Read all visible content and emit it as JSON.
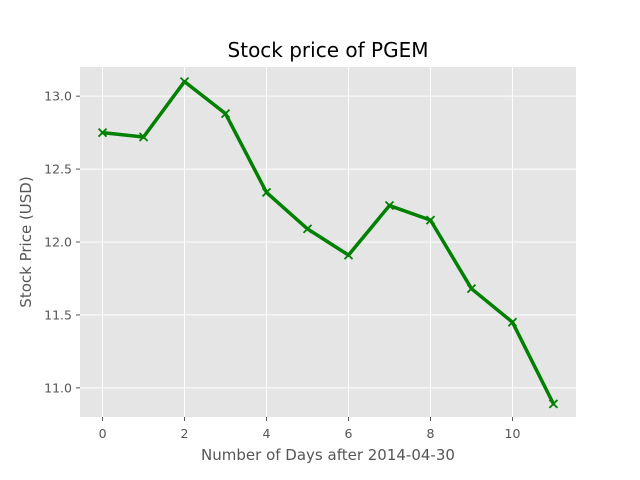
{
  "chart_data": {
    "type": "line",
    "title": "Stock price of PGEM",
    "xlabel": "Number of Days after 2014-04-30",
    "ylabel": "Stock Price (USD)",
    "x": [
      0,
      1,
      2,
      3,
      4,
      5,
      6,
      7,
      8,
      9,
      10,
      11
    ],
    "series": [
      {
        "values": [
          12.75,
          12.72,
          13.1,
          12.88,
          12.34,
          12.09,
          11.91,
          12.25,
          12.15,
          11.68,
          11.45,
          10.89
        ],
        "color": "#008000",
        "marker": "x"
      }
    ],
    "xlim": [
      -0.55,
      11.55
    ],
    "ylim": [
      10.8,
      13.2
    ],
    "xticks": [
      "0",
      "2",
      "4",
      "6",
      "8",
      "10"
    ],
    "yticks": [
      "11.0",
      "11.5",
      "12.0",
      "12.5",
      "13.0"
    ],
    "grid": true,
    "background": "#e5e5e5"
  }
}
